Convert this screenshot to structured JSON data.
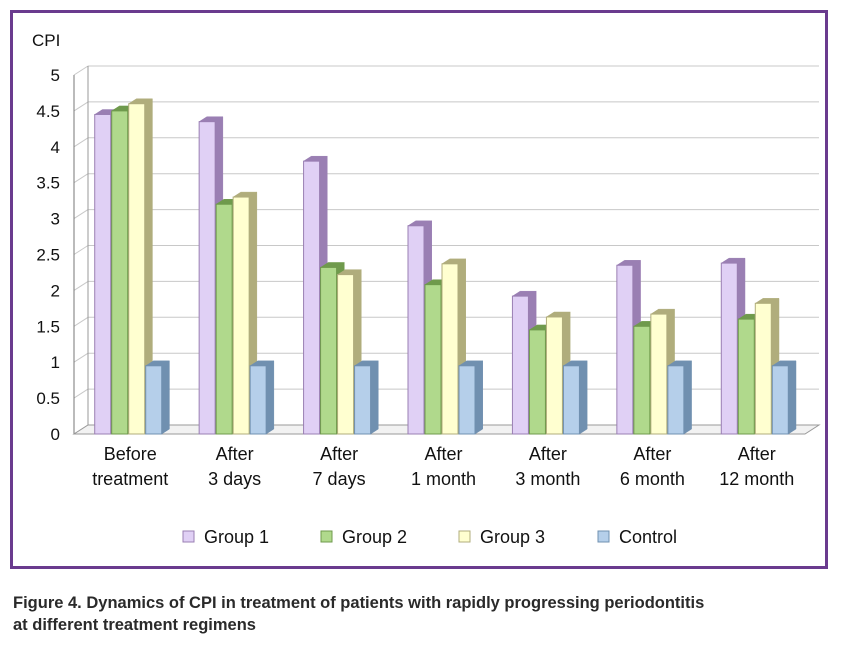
{
  "caption_line1": "Figure 4. Dynamics of CPI in treatment of patients with rapidly progressing periodontitis",
  "caption_line2": "at different treatment regimens",
  "chart_data": {
    "type": "bar",
    "ylabel": "CPI",
    "ylim": [
      0,
      5
    ],
    "yticks": [
      "0",
      "0.5",
      "1",
      "1.5",
      "2",
      "2.5",
      "3",
      "3.5",
      "4",
      "4.5",
      "5"
    ],
    "categories": [
      [
        "Before",
        "treatment"
      ],
      [
        "After",
        "3 days"
      ],
      [
        "After",
        "7 days"
      ],
      [
        "After",
        "1 month"
      ],
      [
        "After",
        "3 month"
      ],
      [
        "After",
        "6 month"
      ],
      [
        "After",
        "12 month"
      ]
    ],
    "series": [
      {
        "name": "Group 1",
        "values": [
          4.45,
          4.35,
          3.8,
          2.9,
          1.92,
          2.35,
          2.38
        ],
        "color": "#e0d0f5",
        "side": "#9a7fb3"
      },
      {
        "name": "Group 2",
        "values": [
          4.5,
          3.2,
          2.32,
          2.08,
          1.45,
          1.5,
          1.6
        ],
        "color": "#b0d98c",
        "side": "#6f9a4c"
      },
      {
        "name": "Group 3",
        "values": [
          4.6,
          3.3,
          2.22,
          2.37,
          1.63,
          1.67,
          1.82
        ],
        "color": "#ffffd0",
        "side": "#b0ad7c"
      },
      {
        "name": "Control",
        "values": [
          0.95,
          0.95,
          0.95,
          0.95,
          0.95,
          0.95,
          0.95
        ],
        "color": "#b5cfea",
        "side": "#7090b0"
      }
    ],
    "grid": true,
    "legend_position": "bottom"
  }
}
